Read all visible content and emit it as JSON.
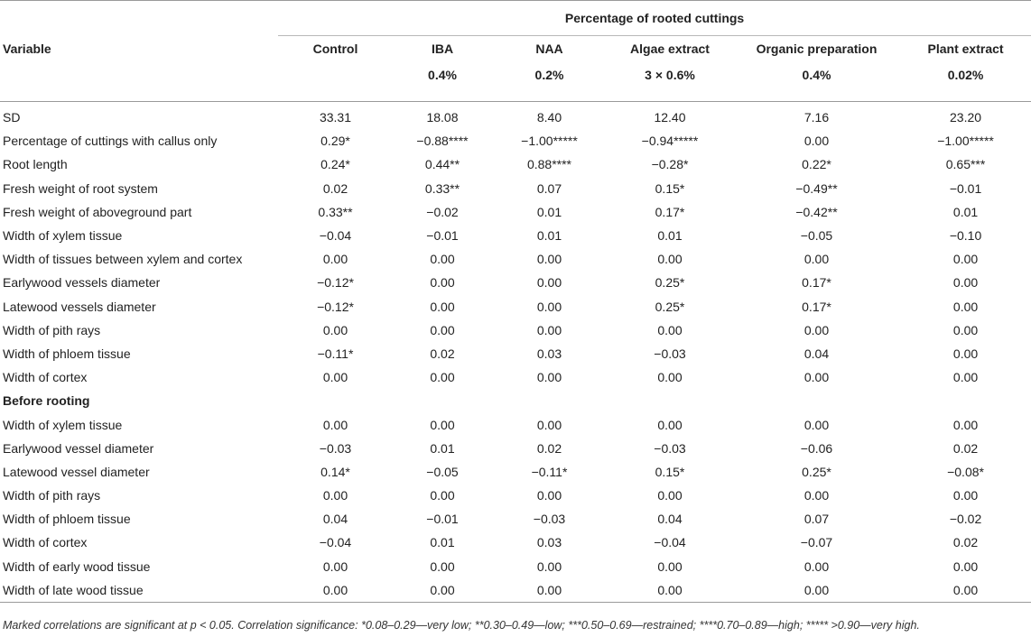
{
  "group_header": "Percentage of rooted cuttings",
  "columns": [
    {
      "line1": "Variable",
      "line2": ""
    },
    {
      "line1": "Control",
      "line2": ""
    },
    {
      "line1": "IBA",
      "line2": "0.4%"
    },
    {
      "line1": "NAA",
      "line2": "0.2%"
    },
    {
      "line1": "Algae extract",
      "line2": "3 × 0.6%"
    },
    {
      "line1": "Organic preparation",
      "line2": "0.4%"
    },
    {
      "line1": "Plant extract",
      "line2": "0.02%"
    }
  ],
  "rows": [
    {
      "label": "SD",
      "values": [
        "33.31",
        "18.08",
        "8.40",
        "12.40",
        "7.16",
        "23.20"
      ]
    },
    {
      "label": "Percentage of cuttings with callus only",
      "values": [
        "0.29*",
        "−0.88****",
        "−1.00*****",
        "−0.94*****",
        "0.00",
        "−1.00*****"
      ]
    },
    {
      "label": "Root length",
      "values": [
        "0.24*",
        "0.44**",
        "0.88****",
        "−0.28*",
        "0.22*",
        "0.65***"
      ]
    },
    {
      "label": "Fresh weight of root system",
      "values": [
        "0.02",
        "0.33**",
        "0.07",
        "0.15*",
        "−0.49**",
        "−0.01"
      ]
    },
    {
      "label": "Fresh weight of aboveground part",
      "values": [
        "0.33**",
        "−0.02",
        "0.01",
        "0.17*",
        "−0.42**",
        "0.01"
      ]
    },
    {
      "label": "Width of xylem tissue",
      "values": [
        "−0.04",
        "−0.01",
        "0.01",
        "0.01",
        "−0.05",
        "−0.10"
      ]
    },
    {
      "label": "Width of tissues between xylem and cortex",
      "values": [
        "0.00",
        "0.00",
        "0.00",
        "0.00",
        "0.00",
        "0.00"
      ]
    },
    {
      "label": "Earlywood vessels diameter",
      "values": [
        "−0.12*",
        "0.00",
        "0.00",
        "0.25*",
        "0.17*",
        "0.00"
      ]
    },
    {
      "label": "Latewood vessels diameter",
      "values": [
        "−0.12*",
        "0.00",
        "0.00",
        "0.25*",
        "0.17*",
        "0.00"
      ]
    },
    {
      "label": "Width of pith rays",
      "values": [
        "0.00",
        "0.00",
        "0.00",
        "0.00",
        "0.00",
        "0.00"
      ]
    },
    {
      "label": "Width of phloem tissue",
      "values": [
        "−0.11*",
        "0.02",
        "0.03",
        "−0.03",
        "0.04",
        "0.00"
      ]
    },
    {
      "label": "Width of cortex",
      "values": [
        "0.00",
        "0.00",
        "0.00",
        "0.00",
        "0.00",
        "0.00"
      ]
    }
  ],
  "section_label": "Before rooting",
  "rows2": [
    {
      "label": "Width of xylem tissue",
      "values": [
        "0.00",
        "0.00",
        "0.00",
        "0.00",
        "0.00",
        "0.00"
      ]
    },
    {
      "label": "Earlywood vessel diameter",
      "values": [
        "−0.03",
        "0.01",
        "0.02",
        "−0.03",
        "−0.06",
        "0.02"
      ]
    },
    {
      "label": "Latewood vessel diameter",
      "values": [
        "0.14*",
        "−0.05",
        "−0.11*",
        "0.15*",
        "0.25*",
        "−0.08*"
      ]
    },
    {
      "label": "Width of pith rays",
      "values": [
        "0.00",
        "0.00",
        "0.00",
        "0.00",
        "0.00",
        "0.00"
      ]
    },
    {
      "label": "Width of phloem tissue",
      "values": [
        "0.04",
        "−0.01",
        "−0.03",
        "0.04",
        "0.07",
        "−0.02"
      ]
    },
    {
      "label": "Width of cortex",
      "values": [
        "−0.04",
        "0.01",
        "0.03",
        "−0.04",
        "−0.07",
        "0.02"
      ]
    },
    {
      "label": "Width of early wood tissue",
      "values": [
        "0.00",
        "0.00",
        "0.00",
        "0.00",
        "0.00",
        "0.00"
      ]
    },
    {
      "label": "Width of late wood tissue",
      "values": [
        "0.00",
        "0.00",
        "0.00",
        "0.00",
        "0.00",
        "0.00"
      ]
    }
  ],
  "footnote": "Marked correlations are significant at p < 0.05. Correlation significance: *0.08–0.29—very low; **0.30–0.49—low; ***0.50–0.69—restrained; ****0.70–0.89—high; ***** >0.90—very high."
}
